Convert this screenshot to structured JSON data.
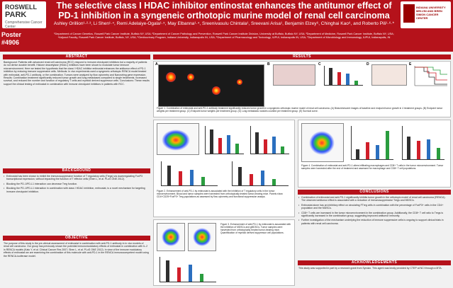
{
  "header": {
    "title": "The selective class I HDAC inhibitor entinostat enhances the antitumor effect of PD-1 inhibition in a syngeneic orthotopic murine model of renal cell carcinoma",
    "authors": "Ashley Orillion¹·²·³, Li Shen¹·⁴, Remi Adelaiye-Ogala¹·⁵, May Elbanna¹·⁴, Sreenivasulu Chintala¹, Sreevani Arisa¹, Benjamin Elzey⁶, Chinghai Kao⁶, and Roberto Pili¹·⁶·*",
    "affiliations": "¹Department of Cancer Genetics, Roswell Park Cancer Institute, Buffalo NY, USA; ²Department of Cancer Pathology and Prevention, Roswell Park Cancer Institute Division, University at Buffalo, Buffalo NY, USA; ³Department of Medicine, Roswell Park Cancer Institute, Buffalo NY, USA; ⁴Adjunct Faculty, Roswell Park Cancer Institute, Buffalo, NY, USA; ⁵Genitourinary Program, Indiana University, Indianapolis IN, USA; ⁶Department of Pharmacology and Toxicology, IUPUI, Indianapolis IN, USA; ⁷Department of Microbiology and Immunology, IUPUI, Indianapolis, IN",
    "poster_label": "Poster",
    "poster_number": "#4906",
    "logo_left_line1": "ROSWELL",
    "logo_left_line2": "PARK",
    "logo_left_tag": "Comprehensive Cancer Center",
    "logo_right_text": "INDIANA UNIVERSITY MELVIN AND BREN SIMON CANCER CENTER"
  },
  "abstract": {
    "heading": "ABSTRACT",
    "text": "Background: Patients with advanced renal cell carcinoma (RCC) respond to immune checkpoint inhibitors but a majority of patients do not derive durable benefit. Histone deacetylase (HDAC) inhibitors have been shown to modulate tumor immune microenvironment. Here we tested the hypothesis that the class I HDAC inhibitor entinostat enhances the antitumor effect of PD-1 inhibition by reducing immune suppressive cells. Methods: In vivo experiments used a syngeneic orthotopic RENCA model treated with entinostat, anti-PD-1 antibody, or the combination. Tumors were analyzed by flow cytometry and Nanostring gene expression. Results: Combination treatment significantly reduced tumor growth and lung metastases compared to single treatments, increased survival, and reduced the number and function of regulatory T cells and myeloid derived suppressor cells. Conclusions: These results support the clinical testing of entinostat in combination with immune checkpoint inhibitors in patients with RCC."
  },
  "background": {
    "heading": "BACKGROUND",
    "items": [
      "Entinostat has been shown to inhibit the immunosuppressive function of T regulatory cells (Tregs) via downregulating FoxP3 transcriptional expression, without impacting the function of T effector cells (Shen L, et al. PLoS ONE 2012).",
      "Blocking the PD-1/PD-L1 interaction can decrease Treg function.",
      "Blocking the PD-1/PD-L1 interaction in combination with class I HDAC inhibition, entinostat, is a novel mechanism for targeting immune checkpoint inhibition."
    ]
  },
  "objective": {
    "heading": "OBJECTIVE",
    "text": "The purpose of this study is the pre-clinical assessment of entinostat in combination with anti-PD-1 antibody in in vivo models of renal cell carcinoma. Our group has previously shown the potential immunomodulatory effects of entinostat in combination with IL-2 in RENCA models (Kato Y, et al. Clinical Cancer Res 2007; Shen L, et al. PLoS ONE 2012). In view of the immune modulatory effects of entinostat we are examining the combination of this molecule with anti-PD-1 in the RENCA immunocompetent model using the RENCA-luciferase model."
  },
  "results": {
    "heading": "RESULTS",
    "fig1_caption": "Figure 1. Combination of entinostat and anti-PD-1 antibody treatment significantly reduces tumor growth in a syngeneic orthotopic murine model of renal cell carcinoma. (A) Bioluminescent images of baseline and endpoint tumor growth in 4 treatment groups. (B) Endpoint tumor weights per treatment group. (C) Endpoint tumor weights per treatment group. (D) Lung metastasis nodules counted per treatment group. (E) Survival curve.",
    "fig2_caption": "Figure 2. Enhancement of anti-PD-1 by entinostat is associated with the inhibition of T regulatory cells in the tumor microenvironment. Blood and tumor samples were harvested from orthotopically treated tumor-bearing mice. Panels show CD4+CD25+FoxP3+ Treg populations as assessed by flow cytometry and functional suppression assays.",
    "fig3_caption": "Figure 3. Enhancement of anti-PD-1 by entinostat is associated with the inhibition of MDSCs and gMDSCs. Tumor samples were harvested from orthotopically treated tumor-bearing mice. Quantification of myeloid derived suppressor cell populations.",
    "fig4_caption": "Figure 4. Combination of entinostat and anti-PD-1 alters infiltrating macrophages and CD8+ T cells in the tumor microenvironment. Tumor samples were harvested after the end of treatment and assessed for macrophage and CD8+ T cell populations."
  },
  "conclusions": {
    "heading": "CONCLUSIONS",
    "items": [
      "Combination of entinostat and anti-PD-1 significantly inhibits tumor growth in the orthotopic model of renal cell carcinoma (RENCA). The observed antitumor effect is associated with a reduction of immunosuppressive Tregs and MDSCs.",
      "Entinostat alone has an inhibitory effect on circulating FTreg cells in combination with the percentage of FoxP3+ cells in the CD4+ population and the MDSCs.",
      "CD8+ T cells are increased in the tumor microenvironment in the combination group. Additionally, the CD8+ T cell ratio to Tregs is significantly increased in the combination group, suggesting improved antitumor immunity.",
      "Further investigation of the mechanism underlying the reduction of immune suppressive cells is ongoing to support clinical trials in patients with renal cell carcinoma."
    ]
  },
  "acknowledgements": {
    "heading": "ACKNOWLEDGEMENTS",
    "text": "This study was supported in part by a research grant from Syndax. This agent was kindly provided by CTEP at NCI through a MTA."
  },
  "panel_labels": [
    "A",
    "B",
    "C",
    "D",
    "E"
  ],
  "colors": {
    "brand": "#b5121b",
    "bar_ctrl": "#2f2f2f",
    "bar_ent": "#d01f2a",
    "bar_pd1": "#2b6fbf",
    "bar_combo": "#2a9d3f"
  }
}
